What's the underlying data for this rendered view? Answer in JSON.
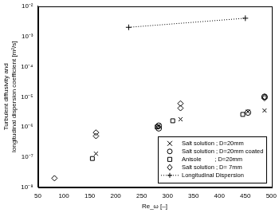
{
  "chart_data": {
    "type": "scatter",
    "x_label": "Re_ω [–]",
    "y_label": [
      "Turbulent diffusivity and",
      "longitudinal dispersion coefficient [m²/s]"
    ],
    "log": "y",
    "grid": false,
    "legend": "lower right",
    "xlim": [
      50,
      500
    ],
    "xticks": [
      50,
      100,
      150,
      200,
      250,
      300,
      350,
      400,
      450,
      500
    ],
    "ylim": [
      1e-08,
      0.01
    ],
    "yticks": [
      {
        "value": 1e-08,
        "label": "10⁻⁸"
      },
      {
        "value": 1e-07,
        "label": "10⁻⁷"
      },
      {
        "value": 1e-06,
        "label": "10⁻⁶"
      },
      {
        "value": 1e-05,
        "label": "10⁻⁵"
      },
      {
        "value": 0.0001,
        "label": "10⁻⁴"
      },
      {
        "value": 0.001,
        "label": "10⁻³"
      },
      {
        "value": 0.01,
        "label": "10⁻²"
      }
    ],
    "series": [
      {
        "name": "Salt solution ; D=20mm",
        "color": "#000000",
        "marker": "x",
        "line_style": "none",
        "x": [
          162,
          283,
          325,
          455,
          487
        ],
        "values": [
          1.3e-07,
          1.1e-06,
          1.8e-06,
          3.2e-06,
          3.5e-06
        ]
      },
      {
        "name": "Salt solution ; D=20mm coated",
        "color": "#000000",
        "marker": "circle",
        "line_style": "none",
        "x": [
          283,
          283,
          455,
          487
        ],
        "values": [
          1.1e-06,
          9e-07,
          3e-06,
          1e-05
        ]
      },
      {
        "name": "Anisole        ; D=20mm",
        "color": "#000000",
        "marker": "square",
        "line_style": "none",
        "x": [
          155,
          280,
          310,
          445
        ],
        "values": [
          9e-08,
          1e-06,
          1.6e-06,
          2.6e-06
        ]
      },
      {
        "name": "Salt solution ; D= 7mm",
        "color": "#000000",
        "marker": "diamond",
        "line_style": "none",
        "x": [
          82,
          162,
          162,
          325,
          325,
          487,
          487
        ],
        "values": [
          2e-08,
          6.5e-07,
          5e-07,
          6e-06,
          4.2e-06,
          1e-05,
          9e-06
        ]
      },
      {
        "name": "Longitudinal Dispersion",
        "color": "#000000",
        "marker": "plus",
        "line_style": "dotted",
        "x": [
          225,
          450
        ],
        "values": [
          0.002,
          0.004
        ]
      }
    ]
  }
}
